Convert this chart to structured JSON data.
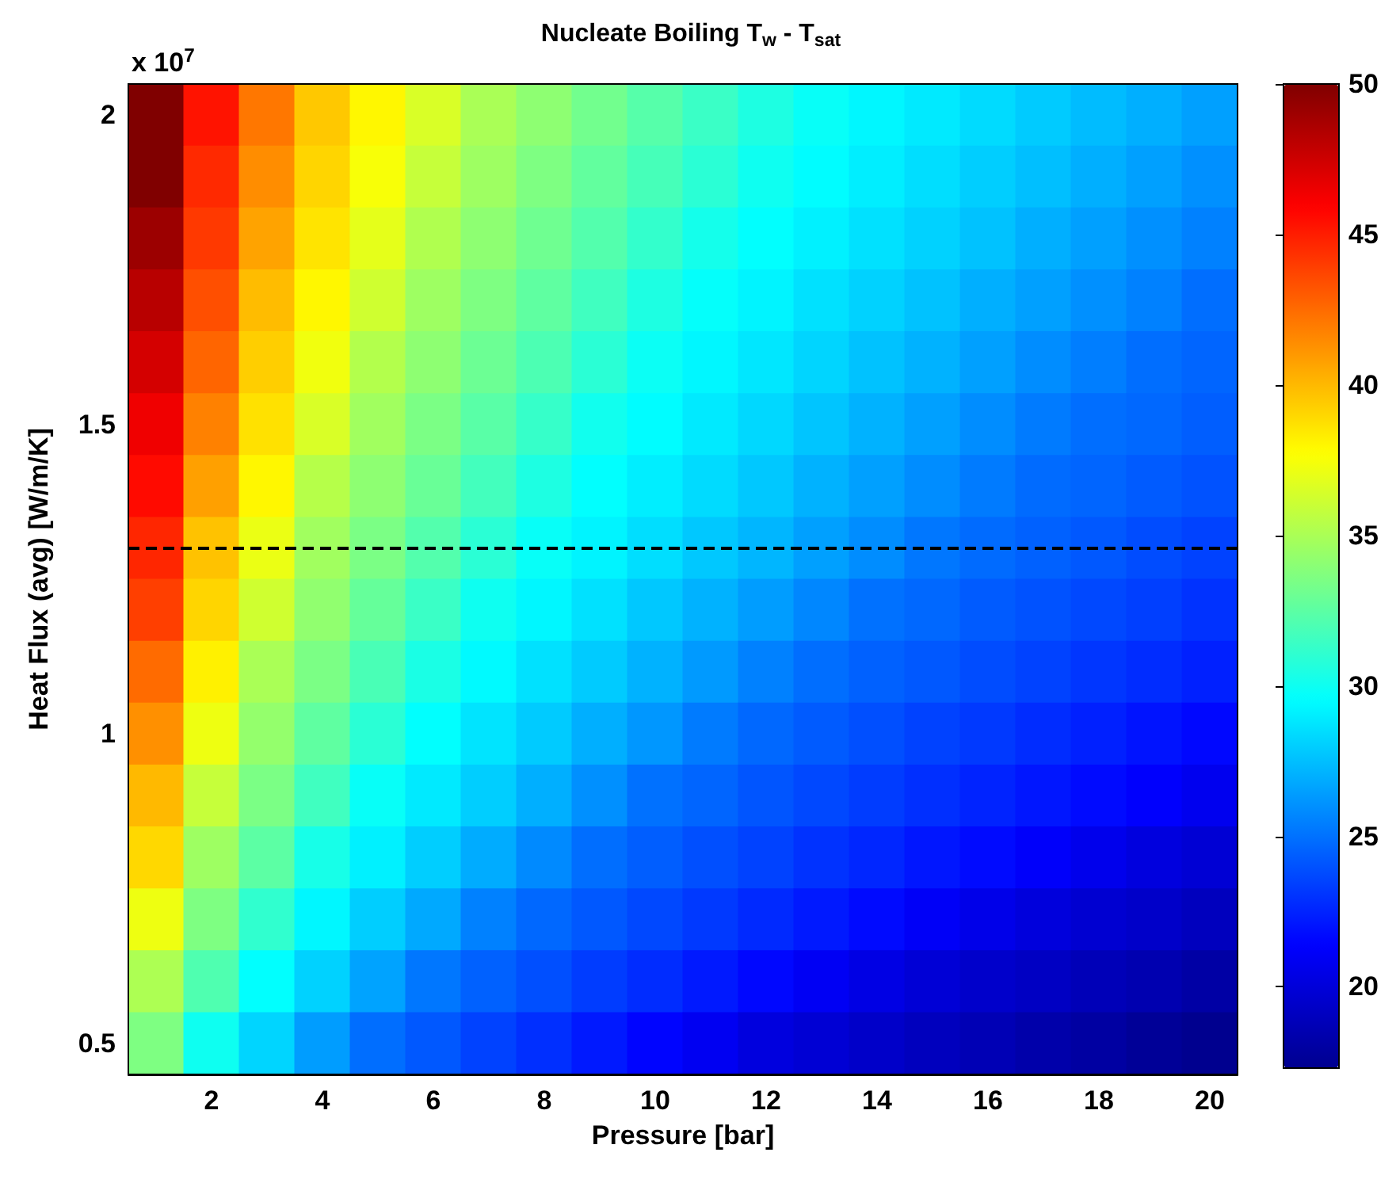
{
  "chart_data": {
    "type": "heatmap",
    "title": "Nucleate Boiling T$_{w}$ - T$_{sat}$",
    "xlabel": "Pressure [bar]",
    "ylabel": "Heat Flux (avg) [W/m/K]",
    "annotations": [
      "x 10$^{7}$"
    ],
    "categories": [
      null,
      "2",
      null,
      "4",
      null,
      "6",
      null,
      "8",
      null,
      "10",
      null,
      "12",
      null,
      "14",
      null,
      "16",
      null,
      "18",
      null,
      "20"
    ],
    "y_categories": [
      "2",
      null,
      null,
      null,
      null,
      "1.5",
      null,
      null,
      null,
      null,
      "1",
      null,
      null,
      null,
      null,
      "0.5"
    ],
    "cells": [
      [
        50,
        45.3,
        42.1,
        39.5,
        38.0,
        36.5,
        35.0,
        34.1,
        33.2,
        32.3,
        31.4,
        30.5,
        29.8,
        29.3,
        28.9,
        28.4,
        27.9,
        27.4,
        27.0,
        26.5
      ],
      [
        50,
        44.6,
        41.4,
        39.1,
        37.5,
        35.9,
        34.6,
        33.6,
        32.7,
        31.8,
        30.9,
        30.0,
        29.5,
        29.0,
        28.5,
        28.0,
        27.5,
        27.0,
        26.5,
        26.0
      ],
      [
        49.1,
        44.1,
        40.7,
        38.6,
        36.9,
        35.2,
        34.1,
        33.1,
        32.2,
        31.2,
        30.2,
        29.6,
        29.1,
        28.6,
        28.1,
        27.6,
        27.0,
        26.5,
        26.0,
        25.5
      ],
      [
        48.2,
        43.4,
        39.9,
        38.0,
        36.2,
        34.6,
        33.6,
        32.6,
        31.6,
        30.5,
        29.7,
        29.2,
        28.6,
        28.1,
        27.6,
        27.0,
        26.5,
        26.0,
        25.5,
        24.9
      ],
      [
        47.3,
        42.7,
        39.3,
        37.3,
        35.3,
        34.1,
        33.0,
        32.0,
        30.9,
        29.9,
        29.3,
        28.8,
        28.2,
        27.6,
        27.1,
        26.5,
        25.9,
        25.4,
        24.9,
        24.6
      ],
      [
        46.4,
        41.8,
        38.7,
        36.5,
        34.7,
        33.5,
        32.4,
        31.3,
        30.1,
        29.5,
        28.9,
        28.3,
        27.7,
        27.1,
        26.5,
        25.9,
        25.3,
        24.9,
        24.7,
        24.4
      ],
      [
        45.6,
        40.8,
        38.0,
        35.4,
        34.1,
        32.9,
        31.7,
        30.5,
        29.6,
        29.0,
        28.4,
        27.8,
        27.1,
        26.5,
        25.9,
        25.3,
        24.8,
        24.6,
        24.3,
        24.0
      ],
      [
        44.7,
        39.7,
        37.1,
        34.7,
        33.5,
        32.2,
        30.9,
        29.8,
        29.2,
        28.5,
        27.8,
        27.2,
        26.5,
        25.9,
        25.2,
        24.8,
        24.5,
        24.2,
        23.8,
        23.5
      ],
      [
        43.9,
        39.1,
        36.2,
        34.2,
        32.8,
        31.4,
        30.0,
        29.3,
        28.6,
        27.8,
        27.1,
        26.4,
        25.7,
        25.0,
        24.7,
        24.3,
        24.0,
        23.7,
        23.4,
        23.0
      ],
      [
        42.5,
        38.2,
        35.0,
        33.5,
        31.9,
        30.4,
        29.4,
        28.6,
        27.9,
        27.1,
        26.3,
        25.5,
        24.9,
        24.5,
        24.2,
        23.8,
        23.5,
        23.1,
        22.8,
        22.4
      ],
      [
        41.3,
        37.2,
        34.3,
        32.6,
        30.9,
        29.6,
        28.7,
        27.9,
        27.0,
        26.2,
        25.3,
        24.7,
        24.3,
        23.9,
        23.5,
        23.2,
        22.8,
        22.4,
        22.0,
        21.6
      ],
      [
        40.0,
        35.9,
        33.5,
        31.6,
        29.8,
        28.9,
        28.0,
        27.0,
        26.0,
        25.0,
        24.6,
        24.1,
        23.7,
        23.3,
        22.9,
        22.5,
        22.1,
        21.7,
        21.3,
        20.8
      ],
      [
        39.0,
        34.6,
        32.5,
        30.3,
        29.1,
        28.0,
        26.9,
        25.8,
        24.9,
        24.4,
        23.9,
        23.5,
        23.0,
        22.6,
        22.1,
        21.7,
        21.2,
        20.7,
        20.2,
        19.8
      ],
      [
        37.2,
        33.6,
        31.1,
        29.3,
        28.0,
        26.8,
        25.5,
        24.7,
        24.2,
        23.7,
        23.2,
        22.7,
        22.2,
        21.7,
        21.1,
        20.6,
        20.1,
        19.7,
        19.4,
        19.0
      ],
      [
        35.1,
        32.1,
        29.6,
        28.1,
        26.6,
        25.2,
        24.5,
        23.9,
        23.3,
        22.8,
        22.2,
        21.6,
        21.0,
        20.4,
        19.9,
        19.5,
        19.2,
        18.8,
        18.5,
        18.1
      ],
      [
        33.6,
        30.0,
        28.2,
        26.4,
        24.9,
        24.2,
        23.5,
        22.9,
        22.2,
        21.5,
        20.9,
        20.2,
        19.8,
        19.4,
        19.0,
        18.7,
        18.3,
        18.0,
        17.6,
        17.3
      ]
    ],
    "clim": [
      17.3,
      50
    ],
    "cticks": [
      20,
      25,
      30,
      35,
      40,
      45,
      50
    ]
  }
}
